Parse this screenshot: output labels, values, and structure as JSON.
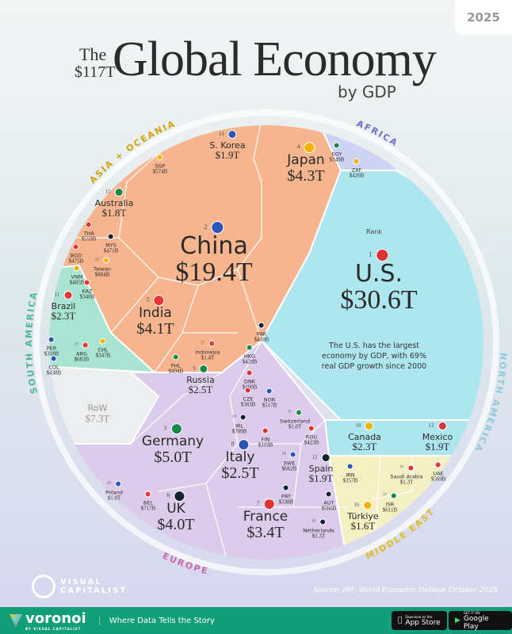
{
  "year": "2025",
  "title": {
    "the": "The",
    "total": "$117T",
    "main": "Global Economy",
    "sub": "by GDP"
  },
  "regions": {
    "asia": "ASIA + OCEANIA",
    "africa": "AFRICA",
    "north_america": "NORTH AMERICA",
    "south_america": "SOUTH AMERICA",
    "middle_east": "MIDDLE EAST",
    "europe": "EUROPE"
  },
  "colors": {
    "asia": "#f6b58f",
    "africa": "#cfd3f3",
    "north_america": "#aee6ef",
    "south_america": "#a9e4d2",
    "middle_east": "#f5efc4",
    "europe": "#dccbea",
    "row": "#eceeef",
    "footer": "#119e78"
  },
  "us_note": {
    "rank_label": "Rank",
    "text": "The U.S. has the largest economy by GDP, with 69% real GDP growth since 2000"
  },
  "chart_data": {
    "type": "voronoi-treemap",
    "title": "The $117T Global Economy by GDP",
    "unit": "USD",
    "items": [
      {
        "name": "U.S.",
        "value": "$30.6T",
        "rank": "1",
        "region": "north_america"
      },
      {
        "name": "China",
        "value": "$19.4T",
        "rank": "2",
        "region": "asia"
      },
      {
        "name": "Germany",
        "value": "$5.0T",
        "rank": "3",
        "region": "europe"
      },
      {
        "name": "Japan",
        "value": "$4.3T",
        "rank": "4",
        "region": "asia"
      },
      {
        "name": "India",
        "value": "$4.1T",
        "rank": "5",
        "region": "asia"
      },
      {
        "name": "UK",
        "value": "$4.0T",
        "rank": "6",
        "region": "europe"
      },
      {
        "name": "France",
        "value": "$3.4T",
        "rank": "7",
        "region": "europe"
      },
      {
        "name": "Italy",
        "value": "$2.5T",
        "rank": "8",
        "region": "europe"
      },
      {
        "name": "Russia",
        "value": "$2.5T",
        "rank": "9",
        "region": "europe"
      },
      {
        "name": "Canada",
        "value": "$2.3T",
        "rank": "10",
        "region": "north_america"
      },
      {
        "name": "Brazil",
        "value": "$2.3T",
        "rank": "11",
        "region": "south_america"
      },
      {
        "name": "Spain",
        "value": "$1.9T",
        "rank": "12",
        "region": "europe"
      },
      {
        "name": "Mexico",
        "value": "$1.9T",
        "rank": "13",
        "region": "north_america"
      },
      {
        "name": "S. Korea",
        "value": "$1.9T",
        "rank": "14",
        "region": "asia"
      },
      {
        "name": "Australia",
        "value": "$1.8T",
        "rank": "15",
        "region": "asia"
      },
      {
        "name": "Türkiye",
        "value": "$1.6T",
        "rank": "16",
        "region": "middle_east"
      },
      {
        "name": "Indonesia",
        "value": "$1.4T",
        "rank": "17",
        "region": "asia"
      },
      {
        "name": "Netherlands",
        "value": "$1.3T",
        "rank": "18",
        "region": "europe"
      },
      {
        "name": "Saudi Arabia",
        "value": "$1.3T",
        "rank": "19",
        "region": "middle_east"
      },
      {
        "name": "Poland",
        "value": "$1.0T",
        "rank": "20",
        "region": "europe"
      },
      {
        "name": "Switzerland",
        "value": "$1.0T",
        "rank": "21",
        "region": "europe"
      },
      {
        "name": "Taiwan",
        "value": "$884B",
        "rank": "22",
        "region": "asia"
      },
      {
        "name": "BEL",
        "value": "$717B",
        "rank": "",
        "region": "europe"
      },
      {
        "name": "IRL",
        "value": "$709B",
        "rank": "24",
        "region": "europe"
      },
      {
        "name": "ARG",
        "value": "$683B",
        "rank": "25",
        "region": "south_america"
      },
      {
        "name": "SWE",
        "value": "$662B",
        "rank": "26",
        "region": "europe"
      },
      {
        "name": "ISR",
        "value": "$611B",
        "rank": "27",
        "region": "middle_east"
      },
      {
        "name": "SGP",
        "value": "$574B",
        "rank": "",
        "region": "asia"
      },
      {
        "name": "UAE",
        "value": "$569B",
        "rank": "",
        "region": "middle_east"
      },
      {
        "name": "AUT",
        "value": "$566B",
        "rank": "",
        "region": "europe"
      },
      {
        "name": "THA",
        "value": "$559B",
        "rank": "",
        "region": "asia"
      },
      {
        "name": "NOR",
        "value": "$517B",
        "rank": "",
        "region": "europe"
      },
      {
        "name": "PHL",
        "value": "$494B",
        "rank": "",
        "region": "asia"
      },
      {
        "name": "VNM",
        "value": "$485B",
        "rank": "",
        "region": "asia"
      },
      {
        "name": "BGD",
        "value": "$475B",
        "rank": "",
        "region": "asia"
      },
      {
        "name": "MYS",
        "value": "$471B",
        "rank": "",
        "region": "asia"
      },
      {
        "name": "DNK",
        "value": "$460B",
        "rank": "",
        "region": "europe"
      },
      {
        "name": "COL",
        "value": "$438B",
        "rank": "",
        "region": "south_america"
      },
      {
        "name": "HKG",
        "value": "$428B",
        "rank": "",
        "region": "asia"
      },
      {
        "name": "ZAF",
        "value": "$426B",
        "rank": "",
        "region": "africa"
      },
      {
        "name": "ROU",
        "value": "$423B",
        "rank": "",
        "region": "europe"
      },
      {
        "name": "PAK",
        "value": "$410B",
        "rank": "",
        "region": "asia"
      },
      {
        "name": "CZE",
        "value": "$383B",
        "rank": "",
        "region": "europe"
      },
      {
        "name": "IRN",
        "value": "$357B",
        "rank": "",
        "region": "middle_east"
      },
      {
        "name": "EGY",
        "value": "$349B",
        "rank": "",
        "region": "africa"
      },
      {
        "name": "CHL",
        "value": "$347B",
        "rank": "",
        "region": "south_america"
      },
      {
        "name": "KAZ",
        "value": "$340B",
        "rank": "",
        "region": "asia"
      },
      {
        "name": "PRT",
        "value": "$338B",
        "rank": "",
        "region": "europe"
      },
      {
        "name": "FIN",
        "value": "$319B",
        "rank": "",
        "region": "europe"
      },
      {
        "name": "PER",
        "value": "$318B",
        "rank": "",
        "region": "south_america"
      },
      {
        "name": "RoW",
        "value": "$7.3T",
        "rank": "",
        "region": "row"
      }
    ]
  },
  "source": "Source: IMF, World Economic Outlook October 2025",
  "logo": {
    "line1": "VISUAL",
    "line2": "CAPITALIST"
  },
  "footer": {
    "brand": "voronoi",
    "brand_sub": "BY VISUAL CAPITALIST",
    "tagline": "Where Data Tells the Story",
    "app_store_small": "Download on the",
    "app_store": "App Store",
    "google_small": "GET IT ON",
    "google": "Google Play"
  }
}
